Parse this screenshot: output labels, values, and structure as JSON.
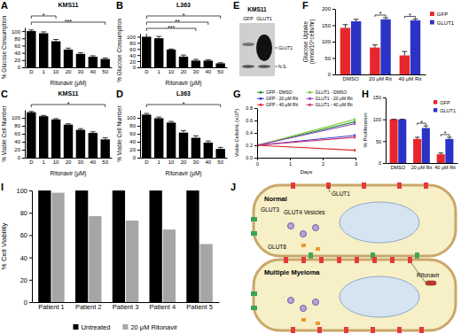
{
  "chart_data": [
    {
      "type": "bar",
      "panel_label": "A",
      "title": "KMS11",
      "categories": [
        "D",
        "1",
        "10",
        "20",
        "30",
        "40",
        "50"
      ],
      "values": [
        100,
        94,
        72,
        49,
        37,
        29,
        23
      ],
      "errors": [
        3,
        4,
        5,
        4,
        3,
        3,
        3
      ],
      "color": "#000000",
      "x_label": "Ritonavir (μM)",
      "y_label": "% Glucose Consumption",
      "ylim": [
        0,
        110
      ],
      "yticks": [
        0,
        20,
        40,
        60,
        80,
        100
      ],
      "annotations": [
        {
          "text": "*",
          "categories": [
            "D",
            "10"
          ]
        },
        {
          "text": "***",
          "categories": [
            "D",
            "50"
          ]
        }
      ]
    },
    {
      "type": "bar",
      "panel_label": "B",
      "title": "L363",
      "categories": [
        "D",
        "1",
        "10",
        "20",
        "30",
        "40",
        "50"
      ],
      "values": [
        100,
        95,
        58,
        35,
        22,
        22,
        13
      ],
      "errors": [
        12,
        6,
        2,
        5,
        4,
        3,
        2
      ],
      "color": "#000000",
      "x_label": "Ritonavir (μM)",
      "y_label": "% Glucose Consumption",
      "ylim": [
        0,
        110
      ],
      "yticks": [
        0,
        20,
        40,
        60,
        80,
        100
      ],
      "annotations": [
        {
          "text": "*",
          "categories": [
            "D",
            "50"
          ]
        },
        {
          "text": "**",
          "categories": [
            "D",
            "40"
          ]
        },
        {
          "text": "***",
          "categories": [
            "D",
            "30"
          ]
        }
      ]
    },
    {
      "type": "bar",
      "panel_label": "C",
      "title": "KMS11",
      "categories": [
        "D",
        "1",
        "10",
        "20",
        "30",
        "40",
        "50"
      ],
      "values": [
        114,
        104,
        96,
        83,
        70,
        62,
        46
      ],
      "errors": [
        2,
        2,
        2,
        2,
        3,
        3,
        4
      ],
      "color": "#000000",
      "x_label": "Ritonavir (μM)",
      "y_label": "% Viable Cell Number",
      "ylim": [
        0,
        120
      ],
      "yticks": [
        0,
        20,
        40,
        60,
        80,
        100
      ],
      "annotations": [
        {
          "text": "*",
          "categories": [
            "D",
            "50"
          ]
        }
      ]
    },
    {
      "type": "bar",
      "panel_label": "D",
      "title": "L363",
      "categories": [
        "D",
        "1",
        "10",
        "20",
        "30",
        "40",
        "50"
      ],
      "values": [
        108,
        99,
        88,
        63,
        50,
        38,
        22
      ],
      "errors": [
        3,
        3,
        3,
        5,
        5,
        4,
        4
      ],
      "color": "#000000",
      "x_label": "Ritonavir (μM)",
      "y_label": "% Viable Cell Number",
      "ylim": [
        0,
        120
      ],
      "yticks": [
        0,
        20,
        40,
        60,
        80,
        100
      ],
      "annotations": [
        {
          "text": "*",
          "categories": [
            "D",
            "50"
          ]
        }
      ]
    },
    {
      "type": "bar",
      "panel_label": "F",
      "categories": [
        "DMSO",
        "20 μM Rit",
        "40 μM Rit"
      ],
      "series": [
        {
          "name": "GFP",
          "color": "#e8262d",
          "values": [
            142,
            82,
            58
          ],
          "errors": [
            10,
            8,
            12
          ]
        },
        {
          "name": "GLUT1",
          "color": "#2b33c7",
          "values": [
            162,
            168,
            165
          ],
          "errors": [
            6,
            5,
            4
          ]
        }
      ],
      "y_label": [
        "Glucose Uptake",
        "(nmol/10⁶cells/hr)"
      ],
      "ylim": [
        0,
        200
      ],
      "yticks": [
        0,
        50,
        100,
        150,
        200
      ],
      "legend": "right",
      "annotations": [
        {
          "text": "*",
          "categories": [
            "20 μM Rit"
          ]
        },
        {
          "text": "*",
          "categories": [
            "40 μM Rit"
          ]
        }
      ]
    },
    {
      "type": "line",
      "panel_label": "G",
      "x": [
        0,
        3
      ],
      "xlim": [
        0,
        3
      ],
      "xticks": [
        0,
        1,
        2,
        3
      ],
      "x_label": "Days",
      "y_label": "Viable Cells/mL (x10⁶)",
      "ylim": [
        0,
        0.8
      ],
      "yticks": [
        {
          "value": 0,
          "label": "0.0"
        },
        0.2,
        0.4,
        0.6,
        0.8
      ],
      "marker": "circle",
      "legend": "top",
      "series": [
        {
          "name": "GFP - DMSO",
          "color": "#1f8a3b",
          "values": [
            0.2,
            0.58
          ]
        },
        {
          "name": "GFP - 20 μM Rit",
          "color": "#3b3bd6",
          "values": [
            0.2,
            0.36
          ]
        },
        {
          "name": "GFP - 40 μM Rit",
          "color": "#e0262b",
          "values": [
            0.2,
            0.12
          ]
        },
        {
          "name": "GLUT1 - DMSO",
          "color": "#7ccd3a",
          "values": [
            0.2,
            0.62
          ]
        },
        {
          "name": "GLUT1 - 20 μM Rit",
          "color": "#8e3bbf",
          "values": [
            0.2,
            0.55
          ]
        },
        {
          "name": "GLUT1 - 40 μM Rit",
          "color": "#c8326e",
          "values": [
            0.2,
            0.33
          ]
        }
      ]
    },
    {
      "type": "bar",
      "panel_label": "H",
      "categories": [
        "DMSO",
        "20 μM Rit",
        "40 μM Rit"
      ],
      "series": [
        {
          "name": "GFP",
          "color": "#e8262d",
          "values": [
            100,
            55,
            20
          ],
          "errors": [
            0,
            4,
            3
          ]
        },
        {
          "name": "GLUT1",
          "color": "#2b33c7",
          "values": [
            100,
            80,
            55
          ],
          "errors": [
            0,
            5,
            4
          ]
        }
      ],
      "y_label": "% Proliferation",
      "ylim": [
        0,
        150
      ],
      "yticks": [
        0,
        50,
        100,
        150
      ],
      "legend": "top-right",
      "annotations": [
        {
          "text": "*",
          "categories": [
            "20 μM Rit"
          ]
        },
        {
          "text": "*",
          "categories": [
            "40 μM Rit"
          ]
        }
      ]
    },
    {
      "type": "bar",
      "panel_label": "I",
      "categories": [
        "Patient 1",
        "Patient 2",
        "Patient 3",
        "Patient 4",
        "Patient 5"
      ],
      "series": [
        {
          "name": "Untreated",
          "color": "#000000",
          "values": [
            100,
            100,
            100,
            100,
            100
          ]
        },
        {
          "name": "20 μM Ritonavir",
          "color": "#a6a6a6",
          "values": [
            98,
            77,
            73,
            65,
            52
          ]
        }
      ],
      "y_label": "% Cell Viability",
      "ylim": [
        0,
        100
      ],
      "yticks": [
        0,
        20,
        40,
        60,
        80,
        100
      ],
      "legend": "bottom"
    }
  ],
  "blot": {
    "panel_label": "E",
    "cell_line": "KMS11",
    "lanes": [
      "GFP",
      "GLUT1"
    ],
    "bands": [
      "GLUT1",
      "N.S."
    ]
  },
  "diagram": {
    "panel_label": "J",
    "cells": [
      {
        "title": "Normal",
        "labels": [
          "GLUT1",
          "GLUT3",
          "GLUT4 Vesicles",
          "GLUT8"
        ]
      },
      {
        "title": "Multiple Myeloma",
        "labels": [
          "Ritonavir"
        ]
      }
    ]
  }
}
